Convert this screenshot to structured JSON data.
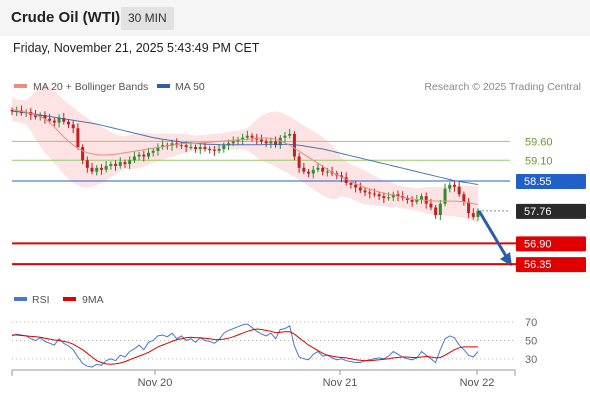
{
  "header": {
    "instrument": "Crude Oil (WTI)",
    "timeframe": "30 MIN"
  },
  "datetime": "Friday, November 21, 2025 5:43:49 PM CET",
  "colors": {
    "ma20": "#f08a80",
    "ma50": "#2d5ea8",
    "bollinger_fill": "#fde0e0",
    "resistance_line": "#9acb6a",
    "pivot_line": "#2060c8",
    "support_line": "#e00000",
    "bull_candle": "#2e8b2e",
    "bear_candle": "#c02020",
    "rsi": "#4a78c8",
    "rsi_ma": "#e00000",
    "arrow": "#2b5ca8"
  },
  "chart_data": [
    {
      "type": "candlestick",
      "legend": [
        {
          "name": "MA 20 + Bollinger Bands",
          "color": "#f08a80"
        },
        {
          "name": "MA 50",
          "color": "#2d5ea8"
        }
      ],
      "watermark": "Research © 2025 Trading Central",
      "x_ticks": [
        "Nov 20",
        "Nov 21",
        "Nov 22"
      ],
      "ylim": [
        55.85,
        60.75
      ],
      "levels": [
        {
          "label": "59.60",
          "value": 59.6,
          "kind": "resistance"
        },
        {
          "label": "59.10",
          "value": 59.1,
          "kind": "resistance"
        },
        {
          "label": "58.55",
          "value": 58.55,
          "kind": "pivot"
        },
        {
          "label": "57.76",
          "value": 57.76,
          "kind": "last"
        },
        {
          "label": "56.90",
          "value": 56.9,
          "kind": "support"
        },
        {
          "label": "56.35",
          "value": 56.35,
          "kind": "support"
        }
      ],
      "close": [
        60.4,
        60.42,
        60.35,
        60.38,
        60.3,
        60.25,
        60.3,
        60.2,
        60.15,
        60.1,
        60.22,
        60.12,
        60.05,
        59.95,
        59.45,
        59.1,
        58.9,
        58.8,
        58.9,
        58.85,
        58.95,
        59.0,
        58.95,
        59.05,
        59.0,
        59.1,
        59.2,
        59.25,
        59.2,
        59.3,
        59.35,
        59.45,
        59.5,
        59.48,
        59.55,
        59.5,
        59.5,
        59.45,
        59.45,
        59.4,
        59.45,
        59.4,
        59.38,
        59.35,
        59.4,
        59.5,
        59.55,
        59.6,
        59.65,
        59.7,
        59.75,
        59.7,
        59.65,
        59.6,
        59.55,
        59.6,
        59.5,
        59.7,
        59.75,
        59.8,
        59.2,
        58.9,
        58.8,
        58.75,
        58.85,
        58.9,
        58.8,
        58.8,
        58.75,
        58.7,
        58.65,
        58.5,
        58.45,
        58.38,
        58.3,
        58.25,
        58.22,
        58.2,
        58.15,
        58.1,
        58.12,
        58.2,
        58.15,
        58.1,
        58.05,
        58.0,
        58.05,
        58.15,
        57.95,
        57.85,
        57.65,
        57.95,
        58.35,
        58.45,
        58.4,
        58.2,
        58.0,
        57.7,
        57.6,
        57.76
      ],
      "ma20": [
        60.45,
        60.42,
        60.4,
        60.37,
        60.34,
        60.3,
        60.26,
        60.2,
        60.1,
        59.98,
        59.85,
        59.72,
        59.6,
        59.5,
        59.42,
        59.35,
        59.3,
        59.27,
        59.25,
        59.24,
        59.24,
        59.25,
        59.26,
        59.28,
        59.3,
        59.32,
        59.34,
        59.36,
        59.38,
        59.4,
        59.42,
        59.44,
        59.46,
        59.48,
        59.5,
        59.52,
        59.54,
        59.55,
        59.55,
        59.55,
        59.56,
        59.57,
        59.58,
        59.59,
        59.6,
        59.61,
        59.62,
        59.63,
        59.64,
        59.65,
        59.66,
        59.67,
        59.68,
        59.69,
        59.69,
        59.68,
        59.66,
        59.62,
        59.56,
        59.5,
        59.42,
        59.34,
        59.26,
        59.18,
        59.1,
        59.02,
        58.94,
        58.86,
        58.78,
        58.72,
        58.66,
        58.6,
        58.54,
        58.48,
        58.43,
        58.38,
        58.34,
        58.3,
        58.26,
        58.23,
        58.2,
        58.18,
        58.15,
        58.12,
        58.1,
        58.08,
        58.06,
        58.05,
        58.04,
        58.03,
        58.02,
        58.02,
        58.02,
        58.02,
        58.02,
        58.01,
        58.0,
        57.98,
        57.95,
        57.93
      ],
      "ma50": [
        60.4,
        60.39,
        60.38,
        60.36,
        60.34,
        60.32,
        60.3,
        60.28,
        60.26,
        60.24,
        60.22,
        60.2,
        60.18,
        60.16,
        60.14,
        60.12,
        60.1,
        60.08,
        60.06,
        60.03,
        60.0,
        59.97,
        59.94,
        59.91,
        59.88,
        59.85,
        59.82,
        59.79,
        59.76,
        59.73,
        59.7,
        59.68,
        59.66,
        59.64,
        59.62,
        59.6,
        59.58,
        59.57,
        59.56,
        59.55,
        59.54,
        59.53,
        59.52,
        59.52,
        59.51,
        59.51,
        59.51,
        59.51,
        59.51,
        59.51,
        59.51,
        59.51,
        59.51,
        59.51,
        59.52,
        59.52,
        59.52,
        59.52,
        59.52,
        59.52,
        59.51,
        59.5,
        59.48,
        59.46,
        59.44,
        59.42,
        59.4,
        59.37,
        59.34,
        59.31,
        59.28,
        59.25,
        59.22,
        59.19,
        59.16,
        59.13,
        59.1,
        59.07,
        59.04,
        59.01,
        58.98,
        58.95,
        58.92,
        58.89,
        58.86,
        58.83,
        58.8,
        58.77,
        58.74,
        58.71,
        58.68,
        58.65,
        58.62,
        58.59,
        58.56,
        58.54,
        58.52,
        58.5,
        58.48,
        58.46
      ],
      "forecast_arrow": {
        "from": 57.76,
        "to": 56.35
      }
    },
    {
      "type": "line",
      "legend": [
        {
          "name": "RSI",
          "color": "#4a78c8"
        },
        {
          "name": "9MA",
          "color": "#e00000"
        }
      ],
      "yticks": [
        70,
        50,
        30
      ],
      "ylim": [
        20,
        80
      ],
      "rsi": [
        55,
        57,
        56,
        55,
        52,
        50,
        53,
        49,
        47,
        45,
        52,
        47,
        44,
        40,
        32,
        25,
        22,
        21,
        24,
        23,
        28,
        30,
        28,
        34,
        32,
        38,
        41,
        45,
        40,
        48,
        50,
        55,
        56,
        54,
        58,
        52,
        55,
        50,
        52,
        48,
        53,
        50,
        49,
        47,
        51,
        58,
        61,
        63,
        65,
        67,
        68,
        64,
        60,
        57,
        55,
        58,
        52,
        62,
        63,
        66,
        44,
        32,
        30,
        29,
        35,
        38,
        33,
        34,
        31,
        29,
        30,
        28,
        27,
        26,
        26,
        28,
        29,
        30,
        31,
        30,
        33,
        38,
        35,
        32,
        30,
        29,
        31,
        38,
        34,
        30,
        26,
        40,
        52,
        55,
        53,
        45,
        40,
        34,
        32,
        38
      ],
      "ma9": [
        56,
        56,
        55.5,
        55,
        54.5,
        54,
        53.5,
        52.5,
        51.5,
        50.5,
        50,
        49,
        48,
        46,
        43,
        40,
        36,
        32,
        28,
        26,
        24.5,
        24,
        24.5,
        25.5,
        27,
        29,
        31,
        33,
        35,
        37,
        40,
        43,
        45,
        47,
        49,
        51,
        52,
        53,
        53.5,
        53,
        53,
        52.5,
        52,
        51,
        51,
        51.5,
        52.5,
        54,
        56,
        58,
        60,
        61.5,
        62.5,
        62,
        61,
        60,
        58.5,
        59,
        59.5,
        59.5,
        57,
        53,
        49,
        45,
        42,
        39,
        36,
        34,
        33,
        32,
        31.5,
        31,
        30,
        29,
        28.5,
        28,
        28,
        28.5,
        29,
        29.5,
        30,
        31,
        31.5,
        32,
        32,
        31.5,
        31.5,
        32,
        32.5,
        32,
        31,
        31.5,
        34,
        37,
        40,
        42,
        43,
        43,
        43,
        43
      ]
    }
  ]
}
